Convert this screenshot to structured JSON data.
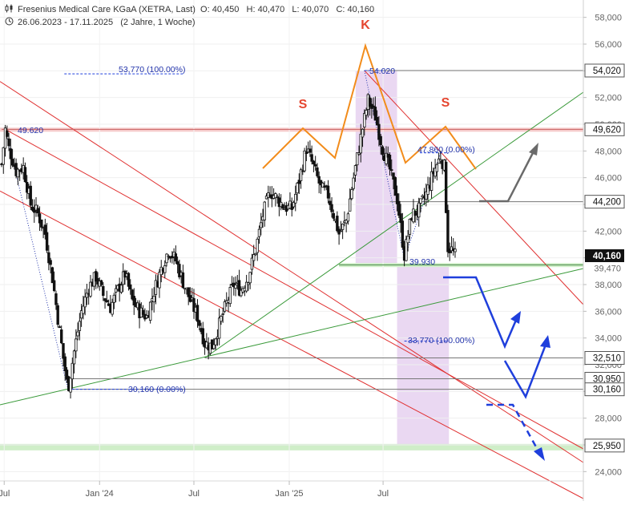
{
  "header": {
    "title": "Fresenius Medical Care KGaA (XETRA, Last)",
    "ohlc": "O: 40,450   H: 40,470   L: 40,070   C: 40,160",
    "range": "26.06.2023 - 17.11.2025   (2 Jahre, 1 Woche)"
  },
  "colors": {
    "candle": "#111111",
    "orange": "#f28c1b",
    "red_line": "#e03131",
    "green_line": "#3a9a3a",
    "blue": "#1f3fdc",
    "dark_blue": "#2233aa",
    "gray": "#6a6a6a",
    "purple_zone": "#ead8f2",
    "green_zone": "#cfeec8",
    "pink_zone": "#f6cbcb",
    "last_price_bg": "#111111"
  },
  "chart_data": {
    "type": "candlestick",
    "title": "Fresenius Medical Care KGaA (XETRA, Last)",
    "ylim": [
      23.3,
      59.3
    ],
    "xlim": [
      "2023-06-26",
      "2025-11-17"
    ],
    "y_ticks": [
      "24,000",
      "26,000",
      "28,000",
      "30,000",
      "32,000",
      "34,000",
      "36,000",
      "38,000",
      "40,000",
      "42,000",
      "44,000",
      "46,000",
      "48,000",
      "50,000",
      "52,000",
      "54,000",
      "56,000",
      "58,000"
    ],
    "x_ticks": [
      {
        "label": "Jul",
        "date": "2023-07-01"
      },
      {
        "label": "Jan '24",
        "date": "2024-01-01"
      },
      {
        "label": "Jul",
        "date": "2024-07-01"
      },
      {
        "label": "Jan '25",
        "date": "2025-01-01"
      },
      {
        "label": "Jul",
        "date": "2025-07-01"
      }
    ],
    "price_path": [
      [
        "2023-06-26",
        47.0
      ],
      [
        "2023-07-03",
        49.62
      ],
      [
        "2023-07-10",
        48.2
      ],
      [
        "2023-07-24",
        46.5
      ],
      [
        "2023-08-07",
        46.8
      ],
      [
        "2023-08-21",
        44.0
      ],
      [
        "2023-09-04",
        43.3
      ],
      [
        "2023-09-18",
        41.8
      ],
      [
        "2023-10-02",
        38.5
      ],
      [
        "2023-10-16",
        34.5
      ],
      [
        "2023-10-23",
        32.5
      ],
      [
        "2023-11-01",
        30.16
      ],
      [
        "2023-11-13",
        33.0
      ],
      [
        "2023-11-27",
        36.0
      ],
      [
        "2023-12-11",
        37.8
      ],
      [
        "2023-12-25",
        38.6
      ],
      [
        "2024-01-08",
        37.2
      ],
      [
        "2024-01-22",
        36.3
      ],
      [
        "2024-02-05",
        37.6
      ],
      [
        "2024-02-19",
        38.8
      ],
      [
        "2024-03-04",
        36.8
      ],
      [
        "2024-03-18",
        36.0
      ],
      [
        "2024-04-01",
        35.6
      ],
      [
        "2024-04-15",
        37.5
      ],
      [
        "2024-04-29",
        39.2
      ],
      [
        "2024-05-13",
        40.6
      ],
      [
        "2024-05-27",
        39.8
      ],
      [
        "2024-06-10",
        38.2
      ],
      [
        "2024-06-24",
        36.8
      ],
      [
        "2024-07-08",
        35.6
      ],
      [
        "2024-07-22",
        33.6
      ],
      [
        "2024-08-05",
        33.4
      ],
      [
        "2024-08-19",
        35.0
      ],
      [
        "2024-09-02",
        36.6
      ],
      [
        "2024-09-16",
        38.0
      ],
      [
        "2024-09-30",
        37.6
      ],
      [
        "2024-10-14",
        38.6
      ],
      [
        "2024-10-28",
        40.6
      ],
      [
        "2024-11-11",
        43.2
      ],
      [
        "2024-11-25",
        45.0
      ],
      [
        "2024-12-09",
        44.4
      ],
      [
        "2024-12-23",
        43.8
      ],
      [
        "2025-01-06",
        43.7
      ],
      [
        "2025-01-20",
        45.8
      ],
      [
        "2025-02-03",
        48.2
      ],
      [
        "2025-02-17",
        46.8
      ],
      [
        "2025-03-03",
        45.2
      ],
      [
        "2025-03-17",
        44.7
      ],
      [
        "2025-04-07",
        41.8
      ],
      [
        "2025-04-21",
        42.8
      ],
      [
        "2025-05-05",
        46.0
      ],
      [
        "2025-05-19",
        49.0
      ],
      [
        "2025-06-02",
        51.8
      ],
      [
        "2025-06-16",
        50.6
      ],
      [
        "2025-06-30",
        48.2
      ],
      [
        "2025-07-14",
        46.6
      ],
      [
        "2025-07-28",
        44.4
      ],
      [
        "2025-08-11",
        40.2
      ],
      [
        "2025-08-25",
        43.2
      ],
      [
        "2025-09-08",
        43.6
      ],
      [
        "2025-09-22",
        44.8
      ],
      [
        "2025-10-06",
        46.4
      ],
      [
        "2025-10-20",
        47.6
      ],
      [
        "2025-10-27",
        46.8
      ],
      [
        "2025-11-03",
        40.8
      ],
      [
        "2025-11-10",
        40.6
      ],
      [
        "2025-11-17",
        40.16
      ]
    ],
    "horizontal_levels": [
      {
        "value": 54.02,
        "label": "54,020"
      },
      {
        "value": 49.62,
        "label": "49,620"
      },
      {
        "value": 44.2,
        "label": "44,200"
      },
      {
        "value": 39.47,
        "label": "39,470"
      },
      {
        "value": 32.51,
        "label": "32,510"
      },
      {
        "value": 30.95,
        "label": "30,950"
      },
      {
        "value": 30.16,
        "label": "30,160"
      },
      {
        "value": 25.95,
        "label": "25,950"
      }
    ],
    "last_price": {
      "value": 40.16,
      "label": "40,160"
    },
    "annotations": {
      "k": "K",
      "s_left": "S",
      "s_right": "S",
      "swing_high_2023": "49.620",
      "target_2023": "53,770 (100.00%)",
      "low_2023": "30,160 (0.00%)",
      "peak_2025": "54.020",
      "high_oct_2025": "47,860 (0.00%)",
      "low_aug_2025": "39.930",
      "target_2025": "33,770 (100.00%)"
    }
  }
}
